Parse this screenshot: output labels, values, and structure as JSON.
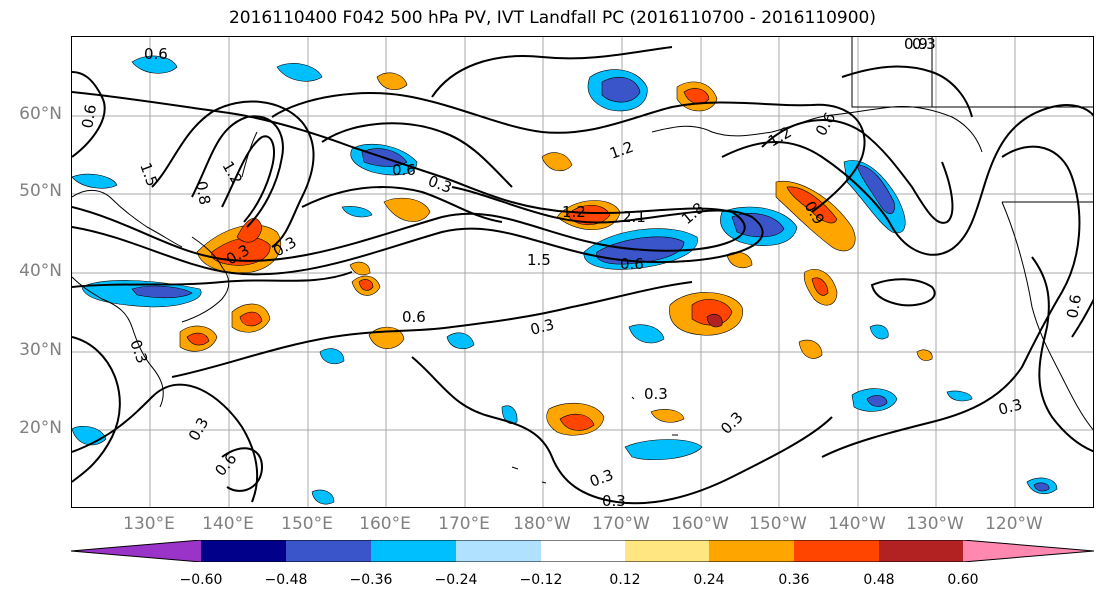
{
  "title": "2016110400 F042 500 hPa PV, IVT Landfall PC (2016110700 - 2016110900)",
  "map": {
    "lat_labels": [
      "60°N",
      "50°N",
      "40°N",
      "30°N",
      "20°N"
    ],
    "lon_labels": [
      "130°E",
      "140°E",
      "150°E",
      "160°E",
      "170°E",
      "180°W",
      "170°W",
      "160°W",
      "150°W",
      "140°W",
      "130°W",
      "120°W"
    ],
    "contour_labels": [
      "0.6",
      "0.6",
      "1.5",
      "0.8",
      "1.2",
      "0.6",
      "0.3",
      "1.2",
      "1.2",
      "0.6",
      "0.9",
      "0.3",
      "0.9",
      "1.2",
      "2.1",
      "1.8",
      "1.5",
      "0.6",
      "0.3",
      "0.6",
      "0.3",
      "0.3",
      "0.6",
      "0.3",
      "0.3",
      "0.3",
      "0.3",
      "0.3",
      "0.6",
      "0.3",
      "0.3"
    ]
  },
  "colorbar": {
    "ticks": [
      "−0.60",
      "−0.48",
      "−0.36",
      "−0.24",
      "−0.12",
      "0.12",
      "0.24",
      "0.36",
      "0.48",
      "0.60"
    ],
    "colors": [
      "#9a34c9",
      "#00008b",
      "#3a54c9",
      "#00bfff",
      "#b0e2ff",
      "#ffffff",
      "#ffe680",
      "#ffa500",
      "#ff4500",
      "#b22222",
      "#ff88b0"
    ]
  }
}
